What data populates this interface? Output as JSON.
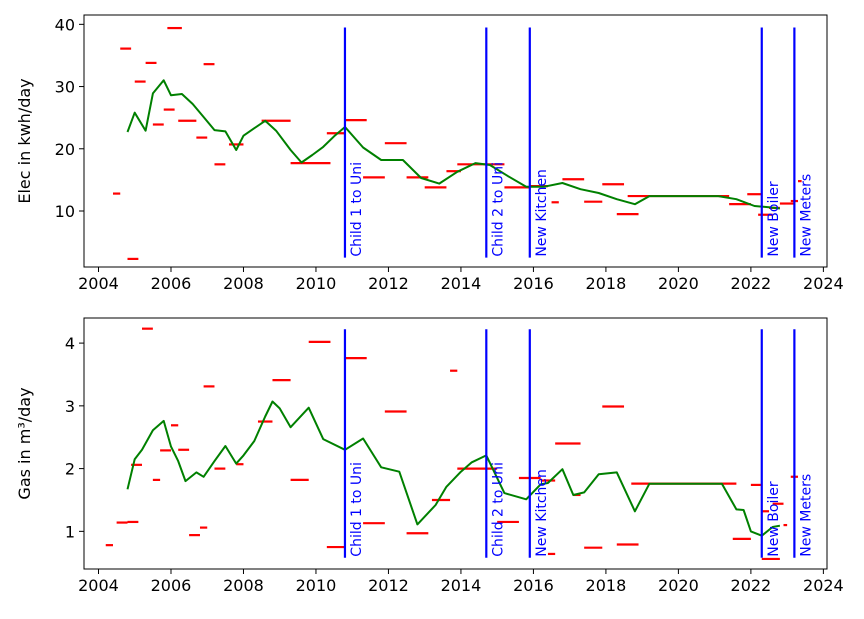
{
  "colors": {
    "readings": "#ff0000",
    "trend": "#008000",
    "events": "#0000ff"
  },
  "chart_data": [
    {
      "type": "line",
      "ylabel": "Elec in kwh/day",
      "xlim": [
        2003.6,
        2024.1
      ],
      "ylim": [
        1,
        41.5
      ],
      "xticks": [
        2004,
        2006,
        2008,
        2010,
        2012,
        2014,
        2016,
        2018,
        2020,
        2022,
        2024
      ],
      "yticks": [
        10,
        20,
        30,
        40
      ],
      "event_range": [
        2.5,
        39.5
      ],
      "readings": [
        [
          2004.4,
          2004.6,
          12.8
        ],
        [
          2004.6,
          2004.9,
          36.1
        ],
        [
          2004.8,
          2005.1,
          2.3
        ],
        [
          2005.0,
          2005.3,
          30.8
        ],
        [
          2005.3,
          2005.6,
          33.8
        ],
        [
          2005.5,
          2005.8,
          23.9
        ],
        [
          2005.8,
          2006.1,
          26.3
        ],
        [
          2005.9,
          2006.3,
          39.4
        ],
        [
          2006.2,
          2006.7,
          24.5
        ],
        [
          2006.7,
          2007.0,
          21.8
        ],
        [
          2006.9,
          2007.2,
          33.6
        ],
        [
          2007.2,
          2007.5,
          17.5
        ],
        [
          2007.6,
          2008.0,
          20.7
        ],
        [
          2008.5,
          2009.3,
          24.5
        ],
        [
          2009.3,
          2010.4,
          17.7
        ],
        [
          2010.3,
          2010.8,
          22.5
        ],
        [
          2010.8,
          2011.4,
          24.6
        ],
        [
          2011.3,
          2011.9,
          15.4
        ],
        [
          2011.9,
          2012.5,
          20.9
        ],
        [
          2012.5,
          2013.1,
          15.4
        ],
        [
          2013.0,
          2013.6,
          13.8
        ],
        [
          2013.6,
          2014.0,
          16.4
        ],
        [
          2013.9,
          2014.6,
          17.5
        ],
        [
          2014.6,
          2015.2,
          17.5
        ],
        [
          2015.2,
          2015.9,
          13.8
        ],
        [
          2015.9,
          2016.4,
          14.0
        ],
        [
          2016.5,
          2016.7,
          11.4
        ],
        [
          2016.8,
          2017.4,
          15.1
        ],
        [
          2017.4,
          2017.9,
          11.5
        ],
        [
          2017.9,
          2018.5,
          14.3
        ],
        [
          2018.3,
          2018.9,
          9.5
        ],
        [
          2018.6,
          2019.3,
          12.4
        ],
        [
          2019.3,
          2021.4,
          12.4
        ],
        [
          2021.4,
          2022.0,
          11.1
        ],
        [
          2021.9,
          2022.3,
          12.7
        ],
        [
          2022.2,
          2022.6,
          9.4
        ],
        [
          2022.5,
          2022.8,
          10.5
        ],
        [
          2022.8,
          2023.2,
          11.2
        ],
        [
          2023.1,
          2023.3,
          11.6
        ],
        [
          2023.3,
          2023.4,
          14.8
        ]
      ],
      "trend": {
        "x": [
          2004.8,
          2005.0,
          2005.3,
          2005.5,
          2005.8,
          2006.0,
          2006.3,
          2006.6,
          2006.9,
          2007.2,
          2007.5,
          2007.8,
          2008.0,
          2008.3,
          2008.6,
          2008.9,
          2009.3,
          2009.6,
          2009.9,
          2010.2,
          2010.5,
          2010.8,
          2011.3,
          2011.8,
          2012.4,
          2012.9,
          2013.4,
          2013.9,
          2014.4,
          2014.8,
          2015.3,
          2015.8,
          2016.3,
          2016.8,
          2017.3,
          2017.8,
          2018.3,
          2018.8,
          2019.2,
          2019.6,
          2020.1,
          2020.6,
          2021.1,
          2021.6,
          2022.1,
          2022.5,
          2022.8
        ],
        "y": [
          22.7,
          25.8,
          22.9,
          28.9,
          31.0,
          28.6,
          28.8,
          27.2,
          25.1,
          23.0,
          22.8,
          19.8,
          22.1,
          23.3,
          24.5,
          22.9,
          19.8,
          17.8,
          19.0,
          20.3,
          22.0,
          23.5,
          20.2,
          18.2,
          18.2,
          15.3,
          14.4,
          16.3,
          17.7,
          17.4,
          15.6,
          13.9,
          13.9,
          14.5,
          13.5,
          12.9,
          11.9,
          11.1,
          12.4,
          12.4,
          12.4,
          12.4,
          12.4,
          11.9,
          10.8,
          10.6,
          10.4
        ]
      },
      "events": [
        {
          "x": 2010.8,
          "label": "Child 1 to Uni"
        },
        {
          "x": 2014.7,
          "label": "Child 2 to Uni"
        },
        {
          "x": 2015.9,
          "label": "New Kitchen"
        },
        {
          "x": 2022.3,
          "label": "New Boiler"
        },
        {
          "x": 2023.2,
          "label": "New Meters"
        }
      ]
    },
    {
      "type": "line",
      "ylabel": "Gas in m³/day",
      "xlim": [
        2003.6,
        2024.1
      ],
      "ylim": [
        0.4,
        4.4
      ],
      "xticks": [
        2004,
        2006,
        2008,
        2010,
        2012,
        2014,
        2016,
        2018,
        2020,
        2022,
        2024
      ],
      "yticks": [
        1,
        2,
        3,
        4
      ],
      "event_range": [
        0.58,
        4.22
      ],
      "readings": [
        [
          2004.2,
          2004.4,
          0.78
        ],
        [
          2004.5,
          2004.8,
          1.14
        ],
        [
          2004.8,
          2005.1,
          1.15
        ],
        [
          2004.9,
          2005.2,
          2.06
        ],
        [
          2005.2,
          2005.5,
          4.23
        ],
        [
          2005.5,
          2005.7,
          1.82
        ],
        [
          2005.7,
          2006.0,
          2.29
        ],
        [
          2006.0,
          2006.2,
          2.69
        ],
        [
          2006.2,
          2006.5,
          2.3
        ],
        [
          2006.5,
          2006.8,
          0.94
        ],
        [
          2006.8,
          2007.0,
          1.06
        ],
        [
          2006.9,
          2007.2,
          3.31
        ],
        [
          2007.2,
          2007.5,
          2.0
        ],
        [
          2007.8,
          2008.0,
          2.07
        ],
        [
          2008.4,
          2008.8,
          2.75
        ],
        [
          2008.8,
          2009.3,
          3.41
        ],
        [
          2009.3,
          2009.8,
          1.82
        ],
        [
          2009.8,
          2010.4,
          4.02
        ],
        [
          2010.3,
          2010.8,
          0.75
        ],
        [
          2010.8,
          2011.4,
          3.76
        ],
        [
          2011.3,
          2011.9,
          1.13
        ],
        [
          2011.9,
          2012.5,
          2.91
        ],
        [
          2012.5,
          2013.1,
          0.97
        ],
        [
          2013.2,
          2013.7,
          1.5
        ],
        [
          2013.7,
          2013.9,
          3.56
        ],
        [
          2013.9,
          2015.0,
          2.0
        ],
        [
          2015.0,
          2015.6,
          1.15
        ],
        [
          2015.6,
          2016.2,
          1.85
        ],
        [
          2016.2,
          2016.6,
          1.81
        ],
        [
          2016.4,
          2016.6,
          0.64
        ],
        [
          2016.6,
          2017.3,
          2.4
        ],
        [
          2017.1,
          2017.3,
          1.58
        ],
        [
          2017.4,
          2017.9,
          0.74
        ],
        [
          2017.9,
          2018.5,
          2.99
        ],
        [
          2018.3,
          2018.9,
          0.79
        ],
        [
          2018.7,
          2021.6,
          1.76
        ],
        [
          2021.5,
          2022.0,
          0.88
        ],
        [
          2022.0,
          2022.3,
          1.74
        ],
        [
          2022.3,
          2022.5,
          1.32
        ],
        [
          2022.3,
          2022.8,
          0.56
        ],
        [
          2022.6,
          2022.9,
          1.44
        ],
        [
          2022.9,
          2023.0,
          1.1
        ],
        [
          2023.1,
          2023.3,
          1.87
        ]
      ],
      "trend": {
        "x": [
          2004.8,
          2005.0,
          2005.2,
          2005.5,
          2005.8,
          2006.0,
          2006.2,
          2006.4,
          2006.7,
          2006.9,
          2007.2,
          2007.5,
          2007.8,
          2008.0,
          2008.3,
          2008.6,
          2008.8,
          2009.0,
          2009.3,
          2009.8,
          2010.2,
          2010.8,
          2011.3,
          2011.8,
          2012.3,
          2012.8,
          2013.3,
          2013.6,
          2014.0,
          2014.3,
          2014.7,
          2015.2,
          2015.8,
          2016.2,
          2016.4,
          2016.8,
          2017.1,
          2017.4,
          2017.8,
          2018.3,
          2018.8,
          2019.2,
          2019.7,
          2020.2,
          2020.7,
          2021.2,
          2021.6,
          2021.8,
          2022.0,
          2022.3,
          2022.6,
          2022.8
        ],
        "y": [
          1.67,
          2.15,
          2.3,
          2.61,
          2.76,
          2.35,
          2.12,
          1.8,
          1.94,
          1.87,
          2.12,
          2.36,
          2.08,
          2.21,
          2.44,
          2.83,
          3.07,
          2.96,
          2.66,
          2.97,
          2.47,
          2.3,
          2.48,
          2.02,
          1.95,
          1.11,
          1.42,
          1.71,
          1.95,
          2.1,
          2.21,
          1.61,
          1.51,
          1.75,
          1.77,
          1.99,
          1.58,
          1.62,
          1.91,
          1.94,
          1.32,
          1.76,
          1.76,
          1.76,
          1.76,
          1.76,
          1.35,
          1.34,
          1.0,
          0.93,
          1.07,
          1.09
        ]
      },
      "events": [
        {
          "x": 2010.8,
          "label": "Child 1 to Uni"
        },
        {
          "x": 2014.7,
          "label": "Child 2 to Uni"
        },
        {
          "x": 2015.9,
          "label": "New Kitchen"
        },
        {
          "x": 2022.3,
          "label": "New Boiler"
        },
        {
          "x": 2023.2,
          "label": "New Meters"
        }
      ]
    }
  ]
}
